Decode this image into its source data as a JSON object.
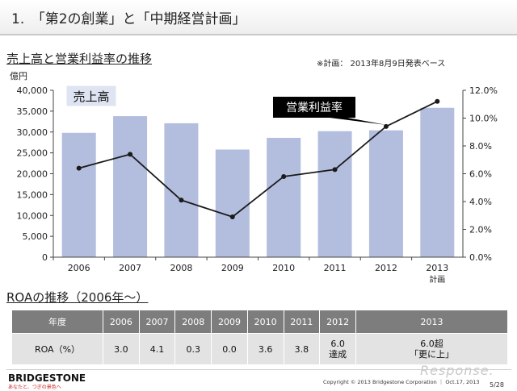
{
  "slide": {
    "title": "1.　「第2の創業」と「中期経営計画」",
    "page_number": "5/28"
  },
  "chart_section": {
    "title": "売上高と営業利益率の推移",
    "note": "※計画： 2013年8月9日発表ベース"
  },
  "chart_data": {
    "type": "bar",
    "categories": [
      "2006",
      "2007",
      "2008",
      "2009",
      "2010",
      "2011",
      "2012",
      "2013"
    ],
    "category_sublabels": [
      "",
      "",
      "",
      "",
      "",
      "",
      "",
      "計画"
    ],
    "series": [
      {
        "name": "売上高",
        "type": "bar",
        "axis": "left",
        "values": [
          29800,
          33800,
          32100,
          25800,
          28600,
          30200,
          30400,
          35800
        ]
      },
      {
        "name": "営業利益率",
        "type": "line",
        "axis": "right",
        "values": [
          6.4,
          7.4,
          4.1,
          2.9,
          5.8,
          6.3,
          9.4,
          11.2
        ]
      }
    ],
    "y_left": {
      "label": "億円",
      "lim": [
        0,
        40000
      ],
      "ticks": [
        "0",
        "5,000",
        "10,000",
        "15,000",
        "20,000",
        "25,000",
        "30,000",
        "35,000",
        "40,000"
      ]
    },
    "y_right": {
      "lim": [
        0,
        12
      ],
      "ticks": [
        "0.0%",
        "2.0%",
        "4.0%",
        "6.0%",
        "8.0%",
        "10.0%",
        "12.0%"
      ]
    },
    "grid": false,
    "colors": {
      "bar": "#b3bddd",
      "line": "#1a1a1a",
      "callout": "#000000",
      "callout_text": "#ffffff"
    }
  },
  "roa_section": {
    "title": "ROAの推移（2006年～）",
    "header": [
      "年度",
      "2006",
      "2007",
      "2008",
      "2009",
      "2010",
      "2011",
      "2012",
      "2013"
    ],
    "row_label": "ROA（%）",
    "values": [
      "3.0",
      "4.1",
      "0.3",
      "0.0",
      "3.6",
      "3.8",
      "6.0\n達成",
      "6.0超\n「更に上」"
    ]
  },
  "footer": {
    "brand": "BRIDGESTONE",
    "tagline": "あなたと、つぎの景色へ",
    "copyright": "Copyright © 2013 Bridgestone Corporation ｜ Oct.17, 2013",
    "watermark": "Response."
  }
}
